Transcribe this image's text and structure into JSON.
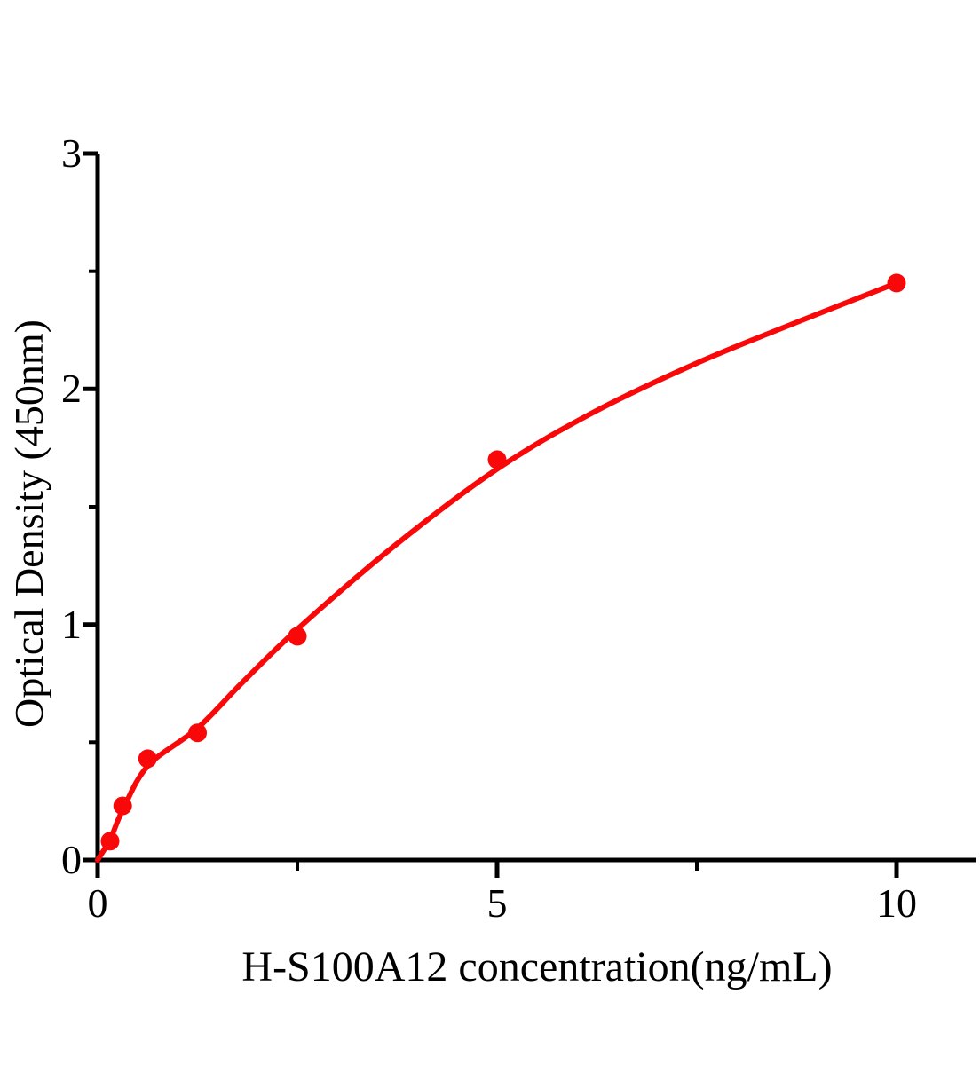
{
  "chart_data": {
    "type": "scatter",
    "title": "",
    "xlabel": "H-S100A12 concentration(ng/mL)",
    "ylabel": "Optical Density (450nm)",
    "x_axis": {
      "min": 0,
      "max": 11,
      "major_ticks": [
        {
          "value": 0,
          "label": "0"
        },
        {
          "value": 5,
          "label": "5"
        },
        {
          "value": 10,
          "label": "10"
        }
      ],
      "minor_ticks": [
        2.5,
        7.5
      ]
    },
    "y_axis": {
      "min": 0,
      "max": 3,
      "major_ticks": [
        {
          "value": 0,
          "label": "0"
        },
        {
          "value": 1,
          "label": "1"
        },
        {
          "value": 2,
          "label": "2"
        },
        {
          "value": 3,
          "label": "3"
        }
      ],
      "minor_ticks": [
        0.5,
        1.5,
        2.5
      ]
    },
    "grid": false,
    "legend": "none",
    "series": [
      {
        "name": "standard-data-points",
        "type": "scatter",
        "marker": "circle",
        "color": "#f80808",
        "points": [
          {
            "x": 0.156,
            "y": 0.08
          },
          {
            "x": 0.313,
            "y": 0.23
          },
          {
            "x": 0.625,
            "y": 0.43
          },
          {
            "x": 1.25,
            "y": 0.54
          },
          {
            "x": 2.5,
            "y": 0.95
          },
          {
            "x": 5,
            "y": 1.7
          },
          {
            "x": 10,
            "y": 2.45
          }
        ]
      },
      {
        "name": "fitted-curve",
        "type": "line",
        "color": "#f80808",
        "points": [
          {
            "x": 0,
            "y": 0
          },
          {
            "x": 0.16,
            "y": 0.09
          },
          {
            "x": 0.31,
            "y": 0.21
          },
          {
            "x": 0.63,
            "y": 0.4
          },
          {
            "x": 1.25,
            "y": 0.56
          },
          {
            "x": 1.8,
            "y": 0.75
          },
          {
            "x": 2.5,
            "y": 0.98
          },
          {
            "x": 3.7,
            "y": 1.33
          },
          {
            "x": 5,
            "y": 1.66
          },
          {
            "x": 6.2,
            "y": 1.9
          },
          {
            "x": 7.5,
            "y": 2.11
          },
          {
            "x": 8.8,
            "y": 2.29
          },
          {
            "x": 10,
            "y": 2.45
          }
        ]
      }
    ],
    "style": {
      "curve_color": "#f80808",
      "marker_color": "#f80808",
      "axis_color": "#000000",
      "background": "#ffffff"
    }
  }
}
